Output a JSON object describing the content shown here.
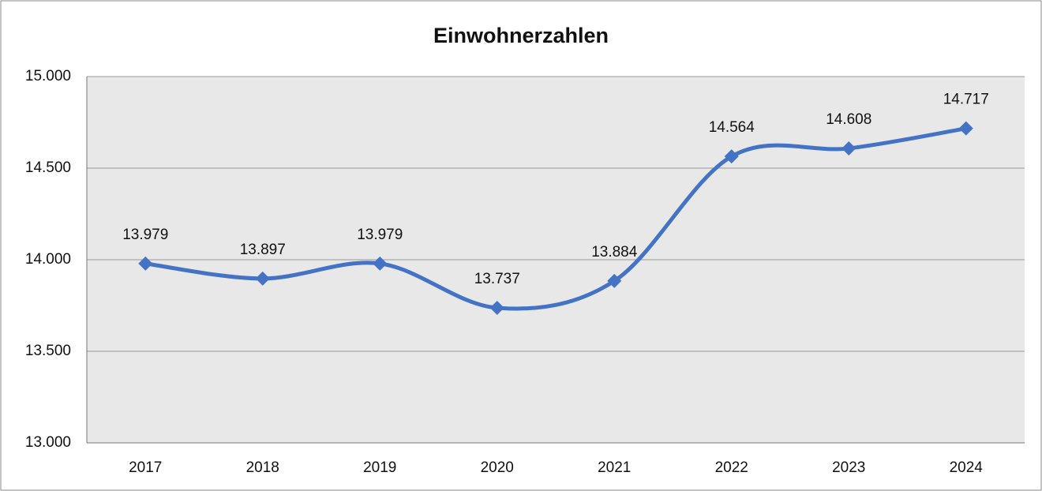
{
  "chart_data": {
    "type": "line",
    "title": "Einwohnerzahlen",
    "categories": [
      "2017",
      "2018",
      "2019",
      "2020",
      "2021",
      "2022",
      "2023",
      "2024"
    ],
    "series": [
      {
        "name": "Einwohnerzahlen",
        "color": "#4472c4",
        "values": [
          13979,
          13897,
          13979,
          13737,
          13884,
          14564,
          14608,
          14717
        ],
        "value_labels": [
          "13.979",
          "13.897",
          "13.979",
          "13.737",
          "13.884",
          "14.564",
          "14.608",
          "14.717"
        ]
      }
    ],
    "ylim": [
      13000,
      15000
    ],
    "yticks": [
      {
        "value": 13000,
        "label": "13.000"
      },
      {
        "value": 13500,
        "label": "13.500"
      },
      {
        "value": 14000,
        "label": "14.000"
      },
      {
        "value": 14500,
        "label": "14.500"
      },
      {
        "value": 15000,
        "label": "15.000"
      }
    ],
    "grid": true,
    "smooth": true
  }
}
